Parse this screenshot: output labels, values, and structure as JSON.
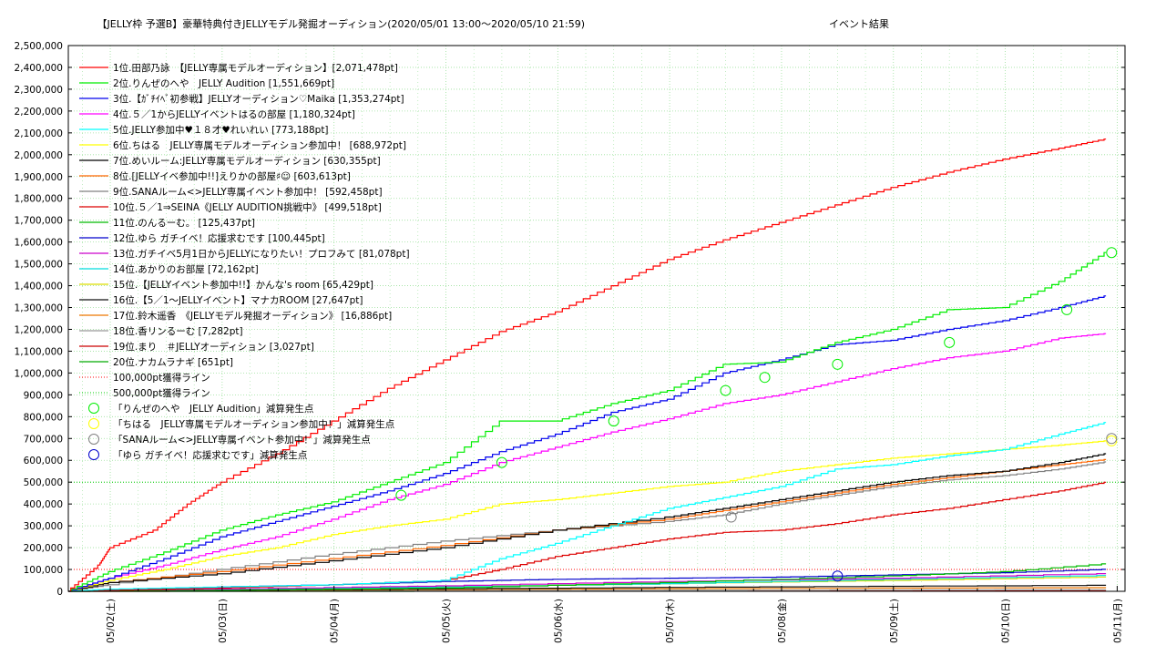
{
  "chart_data": {
    "type": "line",
    "title": "【JELLY枠 予選B】豪華特典付きJELLYモデル発掘オーディション(2020/05/01 13:00～2020/05/10 21:59)",
    "subtitle": "イベント結果",
    "xlabel": "",
    "ylabel": "",
    "x_ticks": [
      "05/02(土)",
      "05/03(日)",
      "05/04(月)",
      "05/05(火)",
      "05/06(水)",
      "05/07(木)",
      "05/08(金)",
      "05/09(土)",
      "05/10(日)",
      "05/11(月)"
    ],
    "xlim": [
      0.625,
      10.07
    ],
    "ylim": [
      0,
      2500000
    ],
    "y_step": 100000,
    "grid": true,
    "legend_position": "top-left",
    "series": [
      {
        "name": "1位.田部乃詠　【JELLY専属モデルオーディション】[2,071,478pt]",
        "color": "#ff0000",
        "points": [
          [
            0.625,
            0
          ],
          [
            0.9,
            120000
          ],
          [
            1.0,
            200000
          ],
          [
            1.4,
            280000
          ],
          [
            1.7,
            400000
          ],
          [
            2.0,
            500000
          ],
          [
            2.5,
            630000
          ],
          [
            3.0,
            780000
          ],
          [
            3.5,
            930000
          ],
          [
            4.0,
            1060000
          ],
          [
            4.5,
            1190000
          ],
          [
            5.0,
            1280000
          ],
          [
            5.5,
            1400000
          ],
          [
            6.0,
            1520000
          ],
          [
            6.5,
            1610000
          ],
          [
            7.0,
            1690000
          ],
          [
            7.5,
            1770000
          ],
          [
            8.0,
            1850000
          ],
          [
            8.5,
            1920000
          ],
          [
            9.0,
            1980000
          ],
          [
            9.5,
            2030000
          ],
          [
            9.9,
            2071478
          ]
        ]
      },
      {
        "name": "2位.りんぜのへや　JELLY Audition [1,551,669pt]",
        "color": "#00ee00",
        "points": [
          [
            0.625,
            0
          ],
          [
            1.0,
            90000
          ],
          [
            1.5,
            180000
          ],
          [
            2.0,
            280000
          ],
          [
            2.5,
            350000
          ],
          [
            3.0,
            410000
          ],
          [
            3.5,
            500000
          ],
          [
            4.0,
            590000
          ],
          [
            4.5,
            780000
          ],
          [
            5.0,
            780000
          ],
          [
            5.5,
            860000
          ],
          [
            6.0,
            920000
          ],
          [
            6.5,
            1040000
          ],
          [
            7.0,
            1050000
          ],
          [
            7.5,
            1140000
          ],
          [
            8.0,
            1200000
          ],
          [
            8.5,
            1290000
          ],
          [
            9.0,
            1300000
          ],
          [
            9.5,
            1420000
          ],
          [
            9.9,
            1551669
          ]
        ]
      },
      {
        "name": "3位.【ｶﾞﾁｲﾍﾞ初参戦】JELLYオーディション♡Maika [1,353,274pt]",
        "color": "#0000ee",
        "points": [
          [
            0.625,
            0
          ],
          [
            1.0,
            60000
          ],
          [
            1.5,
            150000
          ],
          [
            2.0,
            250000
          ],
          [
            2.5,
            320000
          ],
          [
            3.0,
            390000
          ],
          [
            3.5,
            460000
          ],
          [
            4.0,
            540000
          ],
          [
            4.5,
            640000
          ],
          [
            5.0,
            720000
          ],
          [
            5.5,
            820000
          ],
          [
            6.0,
            880000
          ],
          [
            6.5,
            1000000
          ],
          [
            7.0,
            1060000
          ],
          [
            7.5,
            1130000
          ],
          [
            8.0,
            1150000
          ],
          [
            8.5,
            1200000
          ],
          [
            9.0,
            1240000
          ],
          [
            9.5,
            1300000
          ],
          [
            9.9,
            1353274
          ]
        ]
      },
      {
        "name": "4位.５／1からJELLYイベントはるの部屋 [1,180,324pt]",
        "color": "#ff00ff",
        "points": [
          [
            0.625,
            0
          ],
          [
            1.0,
            60000
          ],
          [
            1.5,
            120000
          ],
          [
            2.0,
            190000
          ],
          [
            2.5,
            250000
          ],
          [
            3.0,
            330000
          ],
          [
            3.5,
            420000
          ],
          [
            4.0,
            490000
          ],
          [
            4.5,
            590000
          ],
          [
            5.0,
            660000
          ],
          [
            5.5,
            730000
          ],
          [
            6.0,
            790000
          ],
          [
            6.5,
            860000
          ],
          [
            7.0,
            900000
          ],
          [
            7.5,
            960000
          ],
          [
            8.0,
            1020000
          ],
          [
            8.5,
            1070000
          ],
          [
            9.0,
            1100000
          ],
          [
            9.5,
            1160000
          ],
          [
            9.9,
            1180324
          ]
        ]
      },
      {
        "name": "5位.JELLY参加中♥１８才♥れいれい [773,188pt]",
        "color": "#00ffff",
        "points": [
          [
            0.625,
            0
          ],
          [
            1.0,
            10000
          ],
          [
            2.0,
            20000
          ],
          [
            3.0,
            30000
          ],
          [
            4.0,
            50000
          ],
          [
            4.5,
            150000
          ],
          [
            5.0,
            220000
          ],
          [
            5.5,
            300000
          ],
          [
            6.0,
            380000
          ],
          [
            6.5,
            430000
          ],
          [
            7.0,
            480000
          ],
          [
            7.5,
            560000
          ],
          [
            8.0,
            580000
          ],
          [
            8.5,
            620000
          ],
          [
            9.0,
            650000
          ],
          [
            9.5,
            720000
          ],
          [
            9.9,
            773188
          ]
        ]
      },
      {
        "name": "6位.ちはる　JELLY専属モデルオーディション参加中！ [688,972pt]",
        "color": "#ffff00",
        "points": [
          [
            0.625,
            0
          ],
          [
            1.0,
            50000
          ],
          [
            1.5,
            100000
          ],
          [
            2.0,
            160000
          ],
          [
            2.5,
            200000
          ],
          [
            3.0,
            260000
          ],
          [
            3.5,
            300000
          ],
          [
            4.0,
            330000
          ],
          [
            4.5,
            400000
          ],
          [
            5.0,
            420000
          ],
          [
            5.5,
            450000
          ],
          [
            6.0,
            480000
          ],
          [
            6.5,
            500000
          ],
          [
            7.0,
            550000
          ],
          [
            7.5,
            580000
          ],
          [
            8.0,
            610000
          ],
          [
            8.5,
            630000
          ],
          [
            9.0,
            650000
          ],
          [
            9.5,
            670000
          ],
          [
            9.9,
            688972
          ]
        ]
      },
      {
        "name": "7位.めいルーム:JELLY専属モデルオーディション [630,355pt]",
        "color": "#000000",
        "points": [
          [
            0.625,
            0
          ],
          [
            1.0,
            40000
          ],
          [
            2.0,
            80000
          ],
          [
            3.0,
            140000
          ],
          [
            4.0,
            200000
          ],
          [
            5.0,
            280000
          ],
          [
            6.0,
            340000
          ],
          [
            6.5,
            380000
          ],
          [
            7.0,
            420000
          ],
          [
            7.5,
            460000
          ],
          [
            8.0,
            500000
          ],
          [
            8.5,
            530000
          ],
          [
            9.0,
            550000
          ],
          [
            9.5,
            590000
          ],
          [
            9.9,
            630355
          ]
        ]
      },
      {
        "name": "8位.[JELLYイベ参加中!!]えりかの部屋♯☺ [603,613pt]",
        "color": "#ff6600",
        "points": [
          [
            0.625,
            0
          ],
          [
            1.0,
            40000
          ],
          [
            2.0,
            90000
          ],
          [
            3.0,
            150000
          ],
          [
            4.0,
            210000
          ],
          [
            5.0,
            280000
          ],
          [
            6.0,
            330000
          ],
          [
            6.5,
            370000
          ],
          [
            7.0,
            410000
          ],
          [
            7.5,
            450000
          ],
          [
            8.0,
            490000
          ],
          [
            8.5,
            520000
          ],
          [
            9.0,
            550000
          ],
          [
            9.5,
            580000
          ],
          [
            9.9,
            603613
          ]
        ]
      },
      {
        "name": "9位.SANAルーム<>JELLY専属イベント参加中！ [592,458pt]",
        "color": "#808080",
        "points": [
          [
            0.625,
            0
          ],
          [
            1.0,
            30000
          ],
          [
            2.0,
            100000
          ],
          [
            3.0,
            170000
          ],
          [
            4.0,
            230000
          ],
          [
            5.0,
            280000
          ],
          [
            6.0,
            320000
          ],
          [
            6.5,
            350000
          ],
          [
            7.0,
            400000
          ],
          [
            7.5,
            440000
          ],
          [
            8.0,
            480000
          ],
          [
            8.5,
            510000
          ],
          [
            9.0,
            530000
          ],
          [
            9.5,
            560000
          ],
          [
            9.9,
            592458
          ]
        ]
      },
      {
        "name": "10位.５／1⇒SEINA《JELLY AUDITION挑戦中》 [499,518pt]",
        "color": "#dd0000",
        "points": [
          [
            0.625,
            0
          ],
          [
            1.0,
            5000
          ],
          [
            2.0,
            15000
          ],
          [
            3.0,
            30000
          ],
          [
            4.0,
            50000
          ],
          [
            4.5,
            100000
          ],
          [
            5.0,
            160000
          ],
          [
            5.5,
            200000
          ],
          [
            6.0,
            240000
          ],
          [
            6.5,
            270000
          ],
          [
            7.0,
            280000
          ],
          [
            7.5,
            310000
          ],
          [
            8.0,
            350000
          ],
          [
            8.5,
            380000
          ],
          [
            9.0,
            420000
          ],
          [
            9.5,
            460000
          ],
          [
            9.9,
            499518
          ]
        ]
      },
      {
        "name": "11位.のんるーむ。 [125,437pt]",
        "color": "#00bb00",
        "points": [
          [
            0.625,
            0
          ],
          [
            2.0,
            5000
          ],
          [
            4.0,
            15000
          ],
          [
            6.0,
            40000
          ],
          [
            8.0,
            70000
          ],
          [
            9.0,
            90000
          ],
          [
            9.9,
            125437
          ]
        ]
      },
      {
        "name": "12位.ゆら ガチイベ！応援求むです [100,445pt]",
        "color": "#0000cc",
        "points": [
          [
            0.625,
            0
          ],
          [
            1.0,
            5000
          ],
          [
            2.0,
            20000
          ],
          [
            3.0,
            30000
          ],
          [
            4.0,
            45000
          ],
          [
            5.0,
            55000
          ],
          [
            6.0,
            60000
          ],
          [
            7.0,
            65000
          ],
          [
            8.0,
            75000
          ],
          [
            9.0,
            85000
          ],
          [
            9.9,
            100445
          ]
        ]
      },
      {
        "name": "13位.ガチイベ5月1日からJELLYになりたい！プロフみて [81,078pt]",
        "color": "#cc00cc",
        "points": [
          [
            0.625,
            0
          ],
          [
            2.0,
            10000
          ],
          [
            4.0,
            25000
          ],
          [
            6.0,
            45000
          ],
          [
            8.0,
            60000
          ],
          [
            9.9,
            81078
          ]
        ]
      },
      {
        "name": "14位.あかりのお部屋 [72,162pt]",
        "color": "#00dddd",
        "points": [
          [
            0.625,
            0
          ],
          [
            2.0,
            8000
          ],
          [
            4.0,
            20000
          ],
          [
            6.0,
            35000
          ],
          [
            8.0,
            55000
          ],
          [
            9.9,
            72162
          ]
        ]
      },
      {
        "name": "15位.【JELLYイベント参加中!!】かんな's room [65,429pt]",
        "color": "#dddd00",
        "points": [
          [
            0.625,
            0
          ],
          [
            2.0,
            8000
          ],
          [
            4.0,
            20000
          ],
          [
            6.0,
            35000
          ],
          [
            8.0,
            50000
          ],
          [
            9.9,
            65429
          ]
        ]
      },
      {
        "name": "16位.【5／1～JELLYイベント】マナカROOM [27,647pt]",
        "color": "#111111",
        "points": [
          [
            0.625,
            0
          ],
          [
            3.0,
            8000
          ],
          [
            6.0,
            18000
          ],
          [
            9.9,
            27647
          ]
        ]
      },
      {
        "name": "17位.鈴木遥香　《JELLYモデル発掘オーディション》 [16,886pt]",
        "color": "#ee7700",
        "points": [
          [
            0.625,
            0
          ],
          [
            3.0,
            6000
          ],
          [
            6.0,
            12000
          ],
          [
            9.9,
            16886
          ]
        ]
      },
      {
        "name": "18位.香リンるーむ [7,282pt]",
        "color": "#999999",
        "points": [
          [
            0.625,
            0
          ],
          [
            4.0,
            3000
          ],
          [
            9.9,
            7282
          ]
        ]
      },
      {
        "name": "19位.まり　＃JELLYオーディション [3,027pt]",
        "color": "#cc0000",
        "points": [
          [
            0.625,
            0
          ],
          [
            5.0,
            1500
          ],
          [
            9.9,
            3027
          ]
        ]
      },
      {
        "name": "20位.ナカムラナギ [651pt]",
        "color": "#00aa00",
        "points": [
          [
            0.625,
            0
          ],
          [
            5.0,
            300
          ],
          [
            9.9,
            651
          ]
        ]
      }
    ],
    "reference_lines": [
      {
        "name": "100,000pt獲得ライン",
        "value": 100000,
        "color": "#ff0000"
      },
      {
        "name": "500,000pt獲得ライン",
        "value": 500000,
        "color": "#00cc00"
      }
    ],
    "markers": [
      {
        "name": "「りんぜのへや　JELLY Audition」減算発生点",
        "color": "#00ee00",
        "points": [
          [
            3.6,
            440000
          ],
          [
            4.5,
            590000
          ],
          [
            5.5,
            780000
          ],
          [
            6.5,
            920000
          ],
          [
            6.85,
            980000
          ],
          [
            7.5,
            1040000
          ],
          [
            8.5,
            1140000
          ],
          [
            9.55,
            1290000
          ],
          [
            9.95,
            1551669
          ]
        ]
      },
      {
        "name": "「ちはる　JELLY専属モデルオーディション参加中！」減算発生点",
        "color": "#ffff00",
        "points": [
          [
            9.95,
            688972
          ]
        ]
      },
      {
        "name": "「SANAルーム<>JELLY専属イベント参加中！」減算発生点",
        "color": "#808080",
        "points": [
          [
            6.55,
            340000
          ],
          [
            9.95,
            700000
          ]
        ]
      },
      {
        "name": "「ゆら ガチイベ！応援求むです」減算発生点",
        "color": "#0000cc",
        "points": [
          [
            7.5,
            70000
          ]
        ]
      }
    ]
  }
}
